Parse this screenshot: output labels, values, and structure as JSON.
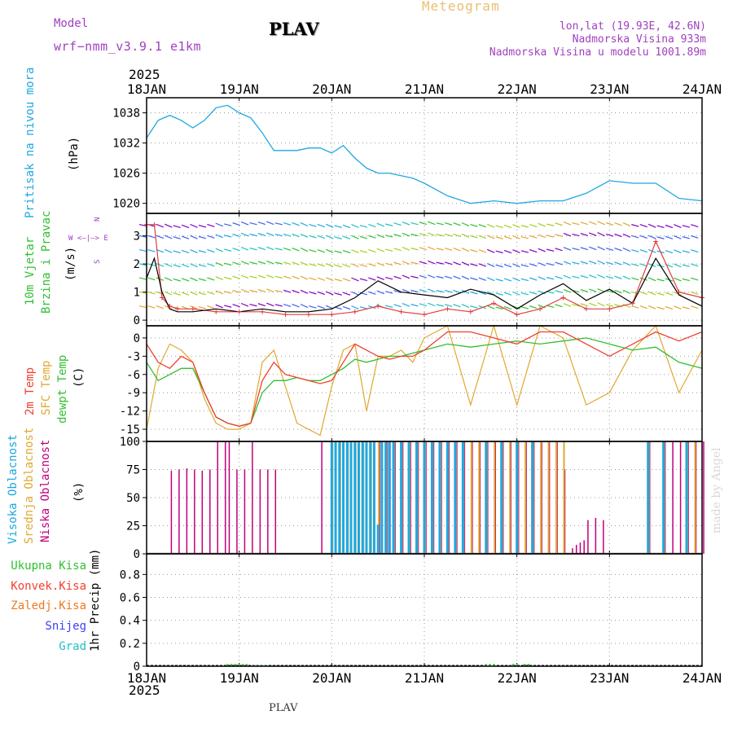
{
  "header": {
    "model_label": "Model",
    "model_name": "wrf−nmm_v3.9.1  e1km",
    "title": "PLAV",
    "meteogram": "Meteogram",
    "lonlat": "lon,lat (19.93E, 42.6N)",
    "elev": "Nadmorska Visina 933m",
    "elev_model": "Nadmorska Visina u modelu 1001.89m",
    "year_top": "2025",
    "year_bottom": "2025",
    "footer": "PLAV",
    "watermark": "made by Angel"
  },
  "colors": {
    "pressure": "#1fa8e0",
    "t2m": "#f04030",
    "sfc": "#e0a830",
    "dew": "#30c030",
    "high_cloud": "#1fa8e0",
    "mid_cloud": "#e0a830",
    "low_cloud": "#c0007a",
    "wind_speed": "#000000",
    "gust": "#e04040",
    "ukupna": "#30c030",
    "konvek": "#f04030",
    "zaledj": "#f07820",
    "snijeg": "#4040f0",
    "grad": "#20c0c0"
  },
  "panel_labels": {
    "pressure": [
      "Pritisak na nivou mora",
      "(hPa)"
    ],
    "wind": [
      "10m Vjetar",
      "Brzina i Pravac",
      "(m/s)"
    ],
    "compass": [
      "N",
      "S",
      "W  <–|–>  E"
    ],
    "temp": [
      "2m Temp",
      "SFC Temp",
      "dewpt Temp",
      "(C)"
    ],
    "cloud": [
      "Visoka Oblacnost",
      "Srednja Oblacnost",
      "Niska  Oblacnost",
      "(%)"
    ],
    "precip": [
      "Ukupna  Kisa",
      "Konvek.Kisa",
      "Zaledj.Kisa",
      "Snijeg",
      "Grad",
      "1hr Precip (mm)"
    ]
  },
  "chart_data": [
    {
      "type": "line",
      "panel": "pressure",
      "x_ticks": [
        "18JAN",
        "19JAN",
        "20JAN",
        "21JAN",
        "22JAN",
        "23JAN",
        "24JAN"
      ],
      "ylabel": "Pritisak na nivou mora (hPa)",
      "yticks": [
        1020,
        1026,
        1032,
        1038
      ],
      "ylim": [
        1018,
        1041
      ],
      "series": [
        {
          "name": "Pritisak na nivou mora",
          "x_hours": [
            0,
            3,
            6,
            9,
            12,
            15,
            18,
            21,
            24,
            27,
            30,
            33,
            36,
            39,
            42,
            45,
            48,
            51,
            54,
            57,
            60,
            63,
            66,
            69,
            72,
            78,
            84,
            90,
            96,
            102,
            108,
            114,
            120,
            126,
            132,
            138,
            144
          ],
          "values": [
            1033,
            1036.5,
            1037.5,
            1036.5,
            1035,
            1036.5,
            1039,
            1039.5,
            1038,
            1037,
            1034,
            1030.5,
            1030.5,
            1030.5,
            1031,
            1031,
            1030,
            1031.5,
            1029,
            1027,
            1026,
            1026,
            1025.5,
            1025,
            1024,
            1021.5,
            1020,
            1020.5,
            1020,
            1020.5,
            1020.5,
            1022,
            1024.5,
            1024,
            1024,
            1021,
            1020.5
          ]
        }
      ]
    },
    {
      "type": "line",
      "panel": "wind",
      "ylabel": "10m Vjetar Brzina i Pravac (m/s)",
      "yticks": [
        0,
        1,
        2,
        3
      ],
      "ylim": [
        -0.2,
        3.8
      ],
      "series": [
        {
          "name": "speed",
          "x_hours": [
            0,
            2,
            4,
            6,
            8,
            12,
            18,
            24,
            30,
            36,
            42,
            48,
            54,
            60,
            66,
            72,
            78,
            84,
            90,
            96,
            102,
            108,
            114,
            120,
            126,
            132,
            138,
            144
          ],
          "values": [
            1.5,
            2.2,
            1.0,
            0.4,
            0.3,
            0.3,
            0.4,
            0.3,
            0.4,
            0.3,
            0.3,
            0.4,
            0.8,
            1.4,
            1.0,
            0.9,
            0.8,
            1.1,
            0.9,
            0.4,
            0.9,
            1.3,
            0.7,
            1.1,
            0.6,
            2.2,
            0.9,
            0.5
          ]
        },
        {
          "name": "gust",
          "x_hours": [
            0,
            2,
            4,
            6,
            8,
            12,
            18,
            24,
            30,
            36,
            42,
            48,
            54,
            60,
            66,
            72,
            78,
            84,
            90,
            96,
            102,
            108,
            114,
            120,
            126,
            132,
            138,
            144
          ],
          "values": [
            3.4,
            3.4,
            0.8,
            0.5,
            0.4,
            0.4,
            0.3,
            0.3,
            0.3,
            0.2,
            0.2,
            0.2,
            0.3,
            0.5,
            0.3,
            0.2,
            0.4,
            0.3,
            0.6,
            0.2,
            0.4,
            0.8,
            0.4,
            0.4,
            0.6,
            2.8,
            1.0,
            0.8
          ]
        }
      ]
    },
    {
      "type": "line",
      "panel": "temp",
      "yticks": [
        0,
        -3,
        -6,
        -9,
        -12,
        -15
      ],
      "ylim": [
        -17,
        2
      ],
      "series": [
        {
          "name": "2m Temp",
          "x_hours": [
            0,
            3,
            6,
            9,
            12,
            15,
            18,
            21,
            24,
            27,
            30,
            33,
            36,
            39,
            42,
            45,
            48,
            51,
            54,
            57,
            60,
            63,
            66,
            69,
            72,
            78,
            84,
            90,
            96,
            102,
            108,
            114,
            120,
            126,
            132,
            138,
            144
          ],
          "values": [
            -1,
            -4,
            -5,
            -3,
            -4,
            -9,
            -13,
            -14,
            -14.5,
            -14,
            -7,
            -4,
            -6,
            -6.5,
            -7,
            -7.5,
            -7,
            -4,
            -1,
            -2,
            -3,
            -3.5,
            -3,
            -3,
            -2,
            1,
            1,
            0,
            -1,
            1,
            1,
            -1,
            -3,
            -1,
            1,
            -0.5,
            1
          ]
        },
        {
          "name": "SFC Temp",
          "x_hours": [
            0,
            3,
            6,
            9,
            12,
            15,
            18,
            21,
            24,
            27,
            30,
            33,
            36,
            39,
            42,
            45,
            48,
            51,
            54,
            57,
            60,
            63,
            66,
            69,
            72,
            78,
            84,
            90,
            96,
            102,
            108,
            114,
            120,
            126,
            132,
            138,
            144
          ],
          "values": [
            -15,
            -5,
            -1,
            -2,
            -4,
            -10,
            -14,
            -15,
            -15,
            -14,
            -4,
            -2,
            -8,
            -14,
            -15,
            -16,
            -8,
            -2,
            -1,
            -12,
            -3,
            -3,
            -2,
            -4,
            0,
            2,
            -11,
            2,
            -11,
            2,
            0,
            -11,
            -9,
            -2,
            2,
            -9,
            -2
          ]
        },
        {
          "name": "dewpt Temp",
          "x_hours": [
            0,
            3,
            6,
            9,
            12,
            15,
            18,
            21,
            24,
            27,
            30,
            33,
            36,
            39,
            42,
            45,
            48,
            51,
            54,
            57,
            60,
            63,
            66,
            69,
            72,
            78,
            84,
            90,
            96,
            102,
            108,
            114,
            120,
            126,
            132,
            138,
            144
          ],
          "values": [
            -4,
            -7,
            -6,
            -5,
            -5,
            -9,
            -13,
            -14,
            -14.5,
            -14,
            -9,
            -7,
            -7,
            -6.5,
            -7,
            -7,
            -6,
            -5,
            -3.5,
            -4,
            -3.5,
            -3,
            -3,
            -2.5,
            -2,
            -1,
            -1.5,
            -1,
            -0.5,
            -1,
            -0.5,
            0,
            -1,
            -2,
            -1.5,
            -4,
            -5
          ]
        }
      ]
    },
    {
      "type": "bar",
      "panel": "cloud",
      "yticks": [
        0,
        25,
        50,
        75,
        100
      ],
      "ylim": [
        0,
        100
      ],
      "series": [
        {
          "name": "Niska  Oblacnost",
          "x_hours": [
            6,
            8,
            10,
            12,
            14,
            16,
            18,
            20,
            21,
            23,
            25,
            27,
            29,
            31,
            33,
            45,
            60,
            62,
            64,
            66,
            68,
            70,
            72,
            74,
            76,
            78,
            80,
            82,
            84,
            86,
            88,
            90,
            92,
            94,
            96,
            98,
            100,
            102,
            104,
            106,
            108,
            110,
            111,
            112,
            113,
            114,
            116,
            118,
            130,
            134,
            136,
            138,
            140,
            142,
            144
          ],
          "values": [
            74,
            75,
            76,
            75,
            74,
            75,
            100,
            100,
            100,
            75,
            75,
            100,
            75,
            75,
            75,
            100,
            100,
            100,
            100,
            100,
            100,
            100,
            100,
            100,
            100,
            100,
            100,
            100,
            100,
            100,
            100,
            100,
            100,
            100,
            100,
            100,
            100,
            100,
            100,
            100,
            75,
            5,
            8,
            10,
            12,
            30,
            32,
            30,
            100,
            100,
            100,
            100,
            100,
            100,
            100
          ]
        },
        {
          "name": "Srednja Oblacnost",
          "x_hours": [
            48,
            50,
            52,
            54,
            56,
            58,
            60,
            62,
            64,
            66,
            68,
            70,
            72,
            74,
            76,
            78,
            80,
            82,
            84,
            86,
            88,
            90,
            92,
            94,
            96,
            98,
            100,
            102,
            104,
            106,
            108,
            130,
            134,
            140,
            142
          ],
          "values": [
            100,
            100,
            100,
            100,
            100,
            100,
            100,
            100,
            100,
            100,
            100,
            100,
            100,
            100,
            100,
            100,
            100,
            100,
            100,
            100,
            100,
            100,
            100,
            100,
            100,
            100,
            100,
            100,
            100,
            100,
            100,
            100,
            100,
            100,
            100
          ]
        },
        {
          "name": "Visoka Oblacnost",
          "x_hours": [
            48,
            49,
            50,
            51,
            52,
            53,
            54,
            55,
            56,
            57,
            58,
            59,
            60,
            61,
            62,
            63,
            64,
            66,
            68,
            70,
            72,
            74,
            76,
            78,
            80,
            82,
            88,
            92,
            96,
            100,
            130,
            134,
            140
          ],
          "values": [
            100,
            100,
            100,
            100,
            100,
            100,
            100,
            100,
            100,
            100,
            100,
            100,
            26,
            100,
            100,
            100,
            100,
            100,
            100,
            100,
            100,
            100,
            100,
            100,
            100,
            100,
            100,
            100,
            100,
            100,
            100,
            100,
            100
          ]
        }
      ]
    },
    {
      "type": "bar",
      "panel": "precip",
      "ylabel": "1hr Precip (mm)",
      "yticks": [
        0,
        0.2,
        0.4,
        0.6,
        0.8
      ],
      "ylim": [
        0,
        0.98
      ],
      "series": [
        {
          "name": "Ukupna  Kisa",
          "x_hours": [
            21,
            22,
            23,
            24,
            25,
            26,
            28,
            29,
            30,
            31,
            88,
            89,
            90,
            94,
            95,
            96,
            98,
            99
          ],
          "values": [
            0.02,
            0.02,
            0.02,
            0.02,
            0.02,
            0.02,
            0.01,
            0.01,
            0.01,
            0.01,
            0.02,
            0.02,
            0.02,
            0.01,
            0.02,
            0.02,
            0.02,
            0.02
          ]
        }
      ]
    }
  ]
}
